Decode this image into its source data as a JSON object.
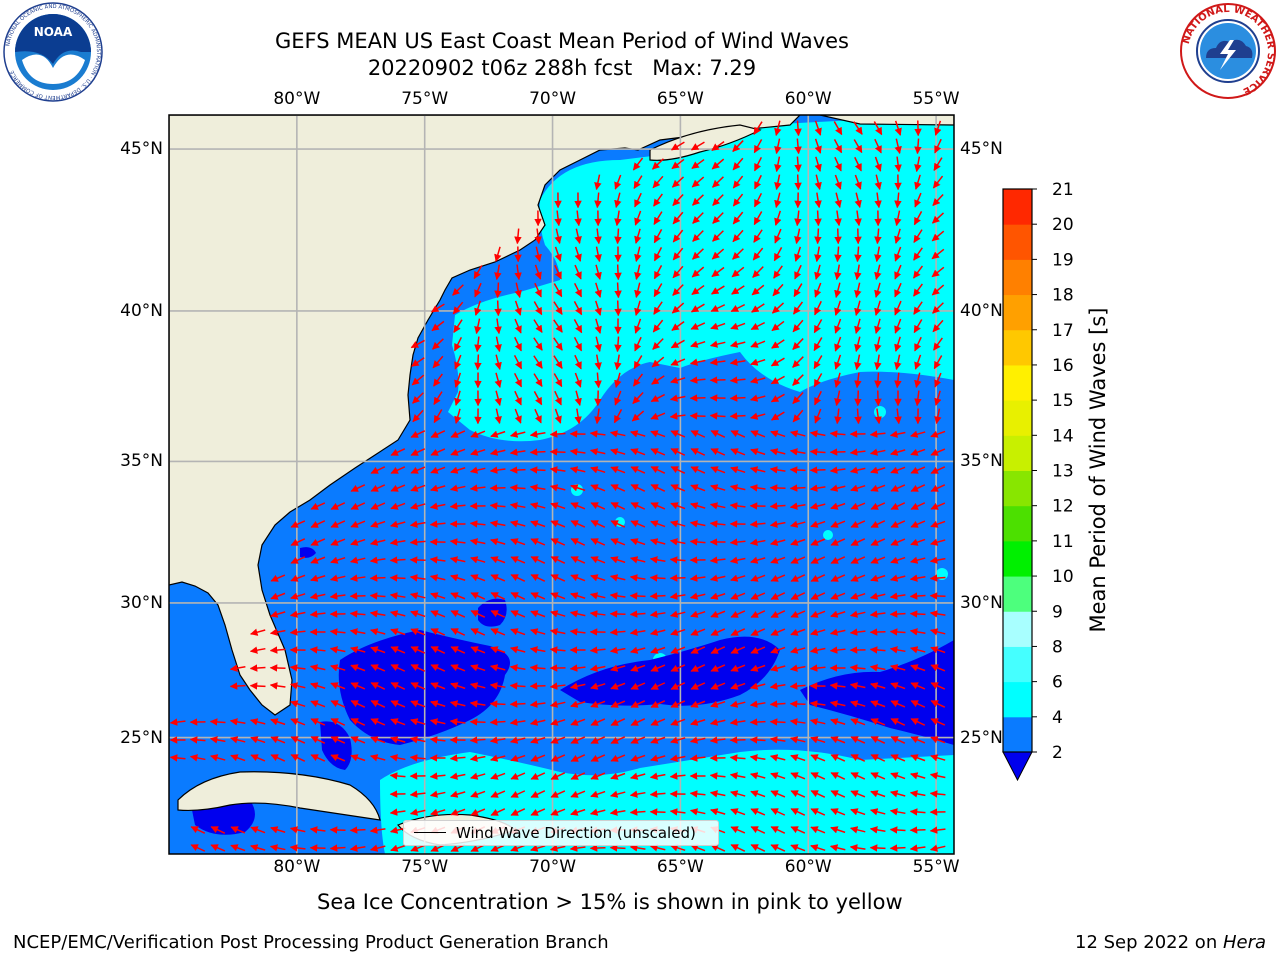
{
  "header": {
    "title_line1": "GEFS MEAN US East Coast Mean Period of Wind Waves",
    "title_line2": "20220902 t06z 288h fcst   Max: 7.29"
  },
  "logos": {
    "left_agency": "NOAA",
    "left_ring_text": "NATIONAL OCEANIC AND ATMOSPHERIC ADMINISTRATION · U.S. DEPARTMENT OF COMMERCE",
    "right_ring_text": "NATIONAL WEATHER SERVICE"
  },
  "map": {
    "lon_labels": [
      "80°W",
      "75°W",
      "70°W",
      "65°W",
      "60°W",
      "55°W"
    ],
    "lat_labels": [
      "45°N",
      "40°N",
      "35°N",
      "30°N",
      "25°N"
    ],
    "lon_values": [
      -80,
      -75,
      -70,
      -65,
      -60,
      -55
    ],
    "lat_values": [
      45,
      40,
      35,
      30,
      25
    ],
    "extent": {
      "lon_min": -85,
      "lon_max": -54.3,
      "lat_min": 20.5,
      "lat_max": 46
    },
    "legend_label": "Wind Wave Direction (unscaled)",
    "colors": {
      "land": "#efeedb",
      "coast": "#000000",
      "grid": "#b4b4b4",
      "arrow": "#ff0000",
      "sea_2_4": "#0a7bff",
      "sea_4_6": "#00ffff",
      "sea_below_2": "#0000ee"
    }
  },
  "colorbar": {
    "label": "Mean Period of Wind Waves [s]",
    "ticks": [
      "2",
      "4",
      "6",
      "8",
      "9",
      "10",
      "11",
      "12",
      "13",
      "14",
      "15",
      "16",
      "17",
      "18",
      "19",
      "20",
      "21"
    ],
    "colors": [
      "#0a7bff",
      "#00ffff",
      "#45ffff",
      "#a8ffff",
      "#4dff7d",
      "#00f000",
      "#4ce000",
      "#88e600",
      "#c8f000",
      "#e8f000",
      "#fff000",
      "#ffc800",
      "#ffa000",
      "#ff8000",
      "#ff5500",
      "#ff2800"
    ],
    "under_color": "#0000ee",
    "top_color": "#ff0000"
  },
  "footer": {
    "note": "Sea Ice Concentration > 15% is shown in pink to yellow",
    "left": "NCEP/EMC/Verification Post Processing Product Generation Branch",
    "right_date": "12 Sep 2022 on ",
    "right_system": "Hera"
  }
}
